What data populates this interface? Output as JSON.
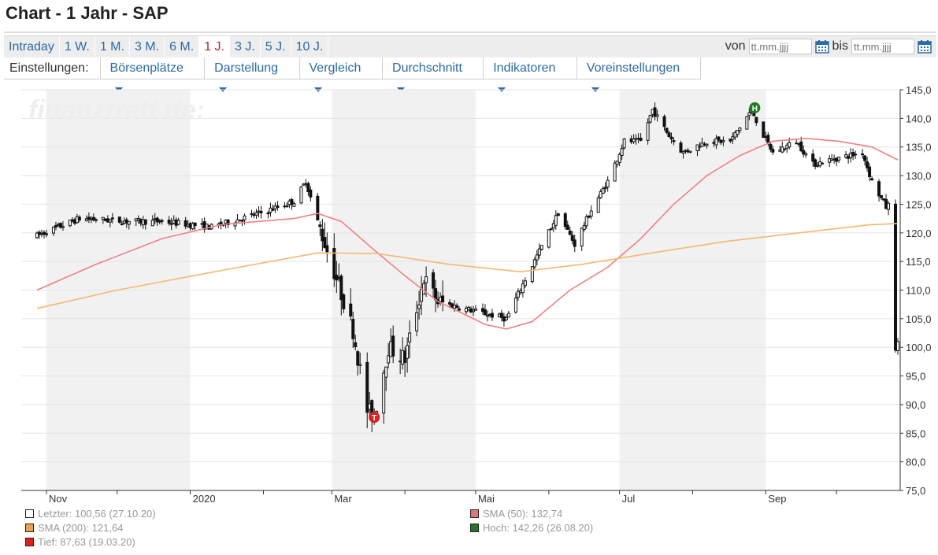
{
  "page": {
    "title": "Chart - 1 Jahr - SAP"
  },
  "range_tabs": [
    {
      "label": "Intraday",
      "active": false
    },
    {
      "label": "1 W.",
      "active": false
    },
    {
      "label": "1 M.",
      "active": false
    },
    {
      "label": "3 M.",
      "active": false
    },
    {
      "label": "6 M.",
      "active": false
    },
    {
      "label": "1 J.",
      "active": true
    },
    {
      "label": "3 J.",
      "active": false
    },
    {
      "label": "5 J.",
      "active": false
    },
    {
      "label": "10 J.",
      "active": false
    }
  ],
  "date_range": {
    "from_label": "von",
    "from_placeholder": "tt.mm.jjjj",
    "to_label": "bis",
    "to_placeholder": "tt.mm.jjjj",
    "icon": "calendar-icon"
  },
  "settings": {
    "label": "Einstellungen:",
    "items": [
      "Börsenplätze",
      "Darstellung",
      "Vergleich",
      "Durchschnitt",
      "Indikatoren",
      "Voreinstellungen"
    ]
  },
  "watermark": "finanztreff.de:",
  "legend": {
    "last": "Letzter: 100,56 (27.10.20)",
    "sma50": "SMA (50): 132,74",
    "sma200": "SMA (200): 121,64",
    "high": "Hoch: 142,26 (26.08.20)",
    "low": "Tief: 87,63 (19.03.20)"
  },
  "chart_data": {
    "type": "candlestick",
    "x_start": "2019-10-28",
    "x_end": "2020-10-27",
    "x_tick_labels": [
      "Nov",
      "2020",
      "Mar",
      "Mai",
      "Jul",
      "Sep"
    ],
    "y_tick_labels": [
      "145,0",
      "140,0",
      "135,0",
      "130,0",
      "125,0",
      "120,0",
      "115,0",
      "110,0",
      "105,0",
      "100,0",
      "95,0",
      "90,0",
      "85,0",
      "80,0",
      "75,0"
    ],
    "ylim": [
      75,
      145
    ],
    "y_axis_side": "right",
    "high_marker": {
      "label": "H",
      "date": "2020-08-26",
      "value": 142.26
    },
    "low_marker": {
      "label": "T",
      "date": "2020-03-19",
      "value": 87.63
    },
    "price_keypoints": [
      [
        "2019-10-28",
        119.5
      ],
      [
        "2019-11-15",
        122.5
      ],
      [
        "2019-12-06",
        122.0
      ],
      [
        "2019-12-20",
        122.0
      ],
      [
        "2020-01-10",
        121.0
      ],
      [
        "2020-01-31",
        123.5
      ],
      [
        "2020-02-14",
        125.5
      ],
      [
        "2020-02-19",
        129.0
      ],
      [
        "2020-02-24",
        122.0
      ],
      [
        "2020-03-03",
        112.0
      ],
      [
        "2020-03-10",
        103.0
      ],
      [
        "2020-03-16",
        89.0
      ],
      [
        "2020-03-19",
        88.0
      ],
      [
        "2020-03-25",
        100.0
      ],
      [
        "2020-04-01",
        98.0
      ],
      [
        "2020-04-09",
        112.0
      ],
      [
        "2020-04-15",
        108.0
      ],
      [
        "2020-04-24",
        107.0
      ],
      [
        "2020-05-04",
        106.0
      ],
      [
        "2020-05-14",
        105.0
      ],
      [
        "2020-05-21",
        111.0
      ],
      [
        "2020-06-05",
        123.5
      ],
      [
        "2020-06-12",
        118.0
      ],
      [
        "2020-06-19",
        124.0
      ],
      [
        "2020-06-26",
        129.0
      ],
      [
        "2020-07-03",
        136.0
      ],
      [
        "2020-07-10",
        136.0
      ],
      [
        "2020-07-15",
        141.5
      ],
      [
        "2020-07-22",
        137.0
      ],
      [
        "2020-07-28",
        134.0
      ],
      [
        "2020-08-07",
        136.0
      ],
      [
        "2020-08-17",
        136.0
      ],
      [
        "2020-08-26",
        141.5
      ],
      [
        "2020-08-31",
        137.0
      ],
      [
        "2020-09-04",
        134.0
      ],
      [
        "2020-09-14",
        136.0
      ],
      [
        "2020-09-21",
        132.0
      ],
      [
        "2020-10-01",
        133.0
      ],
      [
        "2020-10-12",
        134.0
      ],
      [
        "2020-10-16",
        129.0
      ],
      [
        "2020-10-22",
        124.5
      ],
      [
        "2020-10-23",
        124.8
      ],
      [
        "2020-10-26",
        100.0
      ],
      [
        "2020-10-27",
        100.56
      ]
    ],
    "series": [
      {
        "name": "SMA (50)",
        "color": "#f08080",
        "points": [
          [
            "2019-10-28",
            110.0
          ],
          [
            "2019-11-22",
            114.5
          ],
          [
            "2019-12-20",
            119.0
          ],
          [
            "2020-01-15",
            121.5
          ],
          [
            "2020-02-14",
            122.5
          ],
          [
            "2020-02-24",
            123.4
          ],
          [
            "2020-03-05",
            122.0
          ],
          [
            "2020-03-19",
            117.0
          ],
          [
            "2020-04-01",
            112.5
          ],
          [
            "2020-04-15",
            108.0
          ],
          [
            "2020-05-05",
            104.0
          ],
          [
            "2020-05-14",
            103.2
          ],
          [
            "2020-05-25",
            104.5
          ],
          [
            "2020-06-10",
            110.0
          ],
          [
            "2020-06-26",
            114.0
          ],
          [
            "2020-07-10",
            119.0
          ],
          [
            "2020-07-24",
            125.0
          ],
          [
            "2020-08-07",
            130.0
          ],
          [
            "2020-08-21",
            133.5
          ],
          [
            "2020-09-04",
            136.0
          ],
          [
            "2020-09-18",
            136.5
          ],
          [
            "2020-10-02",
            136.0
          ],
          [
            "2020-10-16",
            135.0
          ],
          [
            "2020-10-27",
            132.74
          ]
        ]
      },
      {
        "name": "SMA (200)",
        "color": "#f4b870",
        "points": [
          [
            "2019-10-28",
            106.8
          ],
          [
            "2019-12-01",
            110.0
          ],
          [
            "2020-01-15",
            113.5
          ],
          [
            "2020-02-24",
            116.5
          ],
          [
            "2020-03-20",
            116.4
          ],
          [
            "2020-04-20",
            114.5
          ],
          [
            "2020-05-20",
            113.2
          ],
          [
            "2020-06-15",
            114.5
          ],
          [
            "2020-07-15",
            116.5
          ],
          [
            "2020-08-15",
            118.5
          ],
          [
            "2020-09-15",
            120.0
          ],
          [
            "2020-10-15",
            121.4
          ],
          [
            "2020-10-27",
            121.64
          ]
        ]
      }
    ]
  },
  "colors": {
    "candle": "#111111",
    "grid": "#e4e4e4",
    "band": "#f1f1f1",
    "link": "#2a6aa6",
    "active_tab": "#b3262f",
    "legend_last": "#ffffff",
    "legend_sma50": "#e57373",
    "legend_sma200": "#f0a050",
    "legend_high": "#1e7a1e",
    "legend_low": "#e02020"
  }
}
